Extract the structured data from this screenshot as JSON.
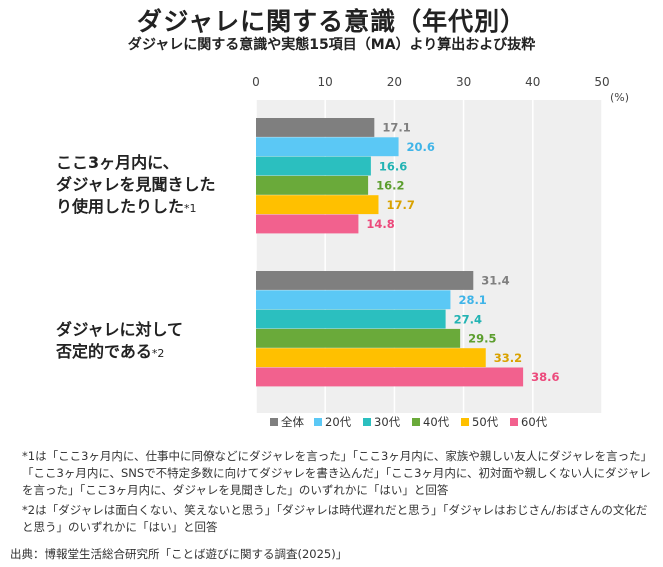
{
  "header": {
    "title": "ダジャレに関する意識（年代別）",
    "subtitle": "ダジャレに関する意識や実態15項目（MA）より算出および抜粋"
  },
  "chart_data": {
    "type": "bar",
    "orientation": "horizontal",
    "unit": "(%)",
    "xlim": [
      0,
      50
    ],
    "xticks": [
      0,
      10,
      20,
      30,
      40,
      50
    ],
    "grid": true,
    "legend_position": "bottom-right",
    "categories": [
      {
        "lines": [
          "ここ3ヶ月内に、",
          "ダジャレを見聞きした",
          "り使用したりした"
        ],
        "mark": "*1"
      },
      {
        "lines": [
          "ダジャレに対して",
          "否定的である"
        ],
        "mark": "*2"
      }
    ],
    "series": [
      {
        "name": "全体",
        "color": "#7f7f7f",
        "label_color": "#7f7f7f",
        "values": [
          17.1,
          31.4
        ]
      },
      {
        "name": "20代",
        "color": "#5bc8f5",
        "label_color": "#3fb4e8",
        "values": [
          20.6,
          28.1
        ]
      },
      {
        "name": "30代",
        "color": "#2bbfbf",
        "label_color": "#22b3b3",
        "values": [
          16.6,
          27.4
        ]
      },
      {
        "name": "40代",
        "color": "#6aaa3a",
        "label_color": "#5c9e2e",
        "values": [
          16.2,
          29.5
        ]
      },
      {
        "name": "50代",
        "color": "#ffc000",
        "label_color": "#d9a200",
        "values": [
          17.7,
          33.2
        ]
      },
      {
        "name": "60代",
        "color": "#f2618e",
        "label_color": "#ec4a7c",
        "values": [
          14.8,
          38.6
        ]
      }
    ]
  },
  "notes": [
    "*1は「ここ3ヶ月内に、仕事中に同僚などにダジャレを言った」「ここ3ヶ月内に、家族や親しい友人にダジャレを言った」「ここ3ヶ月内に、SNSで不特定多数に向けてダジャレを書き込んだ」「ここ3ヶ月内に、初対面や親しくない人にダジャレを言った」「ここ3ヶ月内に、ダジャレを見聞きした」のいずれかに「はい」と回答",
    "*2は「ダジャレは面白くない、笑えないと思う」「ダジャレは時代遅れだと思う」「ダジャレはおじさん/おばさんの文化だと思う」のいずれかに「はい」と回答"
  ],
  "source": "出典：博報堂生活総合研究所「ことば遊びに関する調査(2025)」"
}
